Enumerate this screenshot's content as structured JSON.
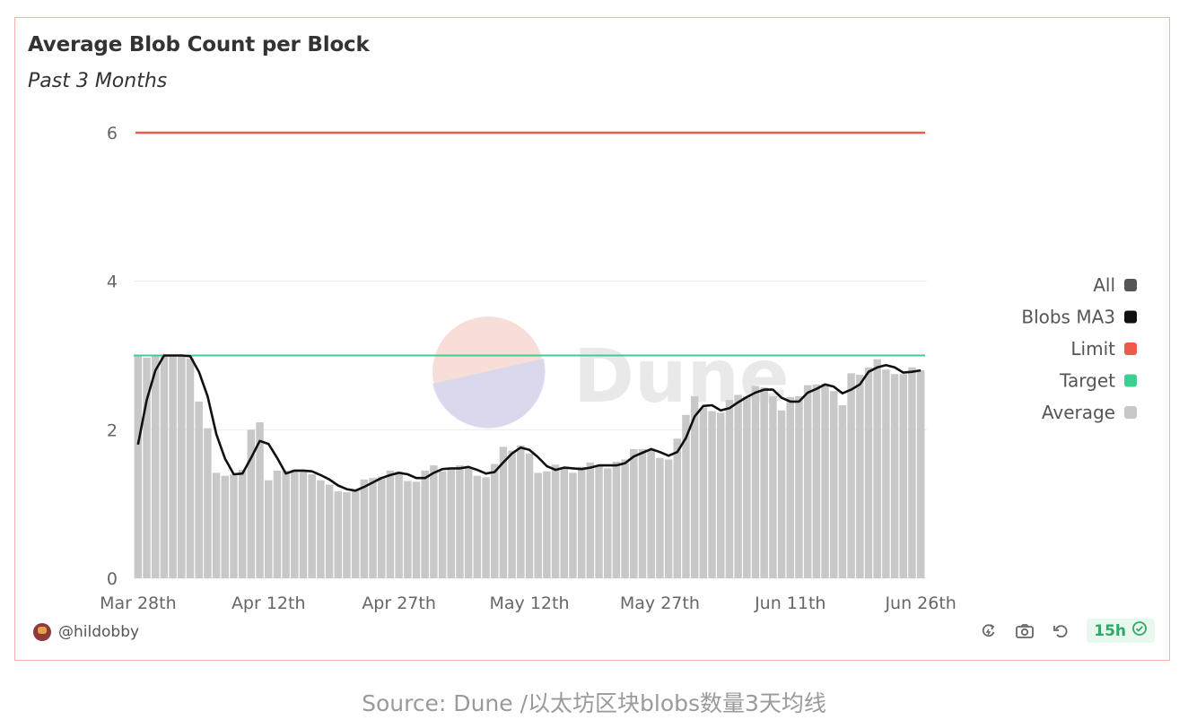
{
  "footer": {
    "username": "@hildobby",
    "time_label": "15h",
    "icons": [
      "refresh-data-icon",
      "camera-icon",
      "undo-icon",
      "check-circle-icon"
    ]
  },
  "caption": "Source: Dune /以太坊区块blobs数量3天均线",
  "colors": {
    "average_bar": "#c8c8c8",
    "ma3_line": "#111111",
    "limit_line": "#ee5a4a",
    "target_line": "#3ccf91",
    "all_swatch": "#555555",
    "grid": "#ececec",
    "card_border": "#f3b3a8"
  },
  "chart_data": {
    "type": "bar",
    "title": "Average Blob Count per Block",
    "subtitle": "Past 3 Months",
    "xlabel": "",
    "ylabel": "",
    "ylim": [
      0,
      6
    ],
    "yticks": [
      0,
      2,
      4,
      6
    ],
    "x_start": "Mar 28th",
    "x_end": "Jun 26th",
    "xticks": [
      {
        "label": "Mar 28th",
        "day": 0
      },
      {
        "label": "Apr 12th",
        "day": 15
      },
      {
        "label": "Apr 27th",
        "day": 30
      },
      {
        "label": "May 12th",
        "day": 45
      },
      {
        "label": "May 27th",
        "day": 60
      },
      {
        "label": "Jun 11th",
        "day": 75
      },
      {
        "label": "Jun 26th",
        "day": 90
      }
    ],
    "grid": true,
    "legend_position": "right",
    "legend": [
      {
        "label": "All",
        "color": "#555555"
      },
      {
        "label": "Blobs MA3",
        "color": "#111111"
      },
      {
        "label": "Limit",
        "color": "#ee5a4a"
      },
      {
        "label": "Target",
        "color": "#3ccf91"
      },
      {
        "label": "Average",
        "color": "#c8c8c8"
      }
    ],
    "limit": 6,
    "target": 3,
    "series": [
      {
        "name": "Average",
        "type": "bar",
        "values": [
          3.0,
          2.97,
          3.0,
          3.0,
          3.0,
          3.0,
          2.96,
          2.38,
          2.02,
          1.42,
          1.38,
          1.4,
          1.46,
          2.0,
          2.1,
          1.32,
          1.45,
          1.45,
          1.46,
          1.45,
          1.4,
          1.32,
          1.26,
          1.17,
          1.16,
          1.2,
          1.33,
          1.35,
          1.37,
          1.45,
          1.44,
          1.31,
          1.3,
          1.45,
          1.52,
          1.44,
          1.49,
          1.52,
          1.48,
          1.38,
          1.36,
          1.54,
          1.77,
          1.72,
          1.79,
          1.68,
          1.42,
          1.44,
          1.53,
          1.5,
          1.42,
          1.5,
          1.56,
          1.51,
          1.48,
          1.57,
          1.6,
          1.74,
          1.74,
          1.73,
          1.62,
          1.6,
          1.88,
          2.2,
          2.45,
          2.3,
          2.25,
          2.23,
          2.4,
          2.47,
          2.45,
          2.59,
          2.57,
          2.45,
          2.26,
          2.44,
          2.45,
          2.6,
          2.61,
          2.62,
          2.52,
          2.33,
          2.76,
          2.74,
          2.84,
          2.95,
          2.81,
          2.75,
          2.75,
          2.84,
          2.8
        ]
      },
      {
        "name": "Blobs MA3",
        "type": "line",
        "values": [
          1.8,
          2.4,
          2.8,
          3.0,
          3.0,
          3.0,
          2.99,
          2.78,
          2.45,
          1.94,
          1.61,
          1.4,
          1.41,
          1.62,
          1.85,
          1.81,
          1.62,
          1.41,
          1.45,
          1.45,
          1.44,
          1.39,
          1.33,
          1.25,
          1.2,
          1.18,
          1.23,
          1.29,
          1.35,
          1.39,
          1.42,
          1.4,
          1.35,
          1.35,
          1.42,
          1.47,
          1.48,
          1.48,
          1.5,
          1.46,
          1.41,
          1.43,
          1.56,
          1.68,
          1.76,
          1.73,
          1.63,
          1.51,
          1.46,
          1.49,
          1.48,
          1.47,
          1.49,
          1.52,
          1.52,
          1.52,
          1.55,
          1.64,
          1.69,
          1.74,
          1.7,
          1.65,
          1.7,
          1.89,
          2.18,
          2.32,
          2.33,
          2.26,
          2.29,
          2.37,
          2.44,
          2.5,
          2.54,
          2.54,
          2.43,
          2.38,
          2.38,
          2.5,
          2.55,
          2.61,
          2.58,
          2.49,
          2.54,
          2.61,
          2.78,
          2.84,
          2.87,
          2.84,
          2.77,
          2.78,
          2.8
        ]
      },
      {
        "name": "Limit",
        "type": "line",
        "values": [
          6
        ]
      },
      {
        "name": "Target",
        "type": "line",
        "values": [
          3
        ]
      }
    ],
    "watermark": "Dune"
  }
}
